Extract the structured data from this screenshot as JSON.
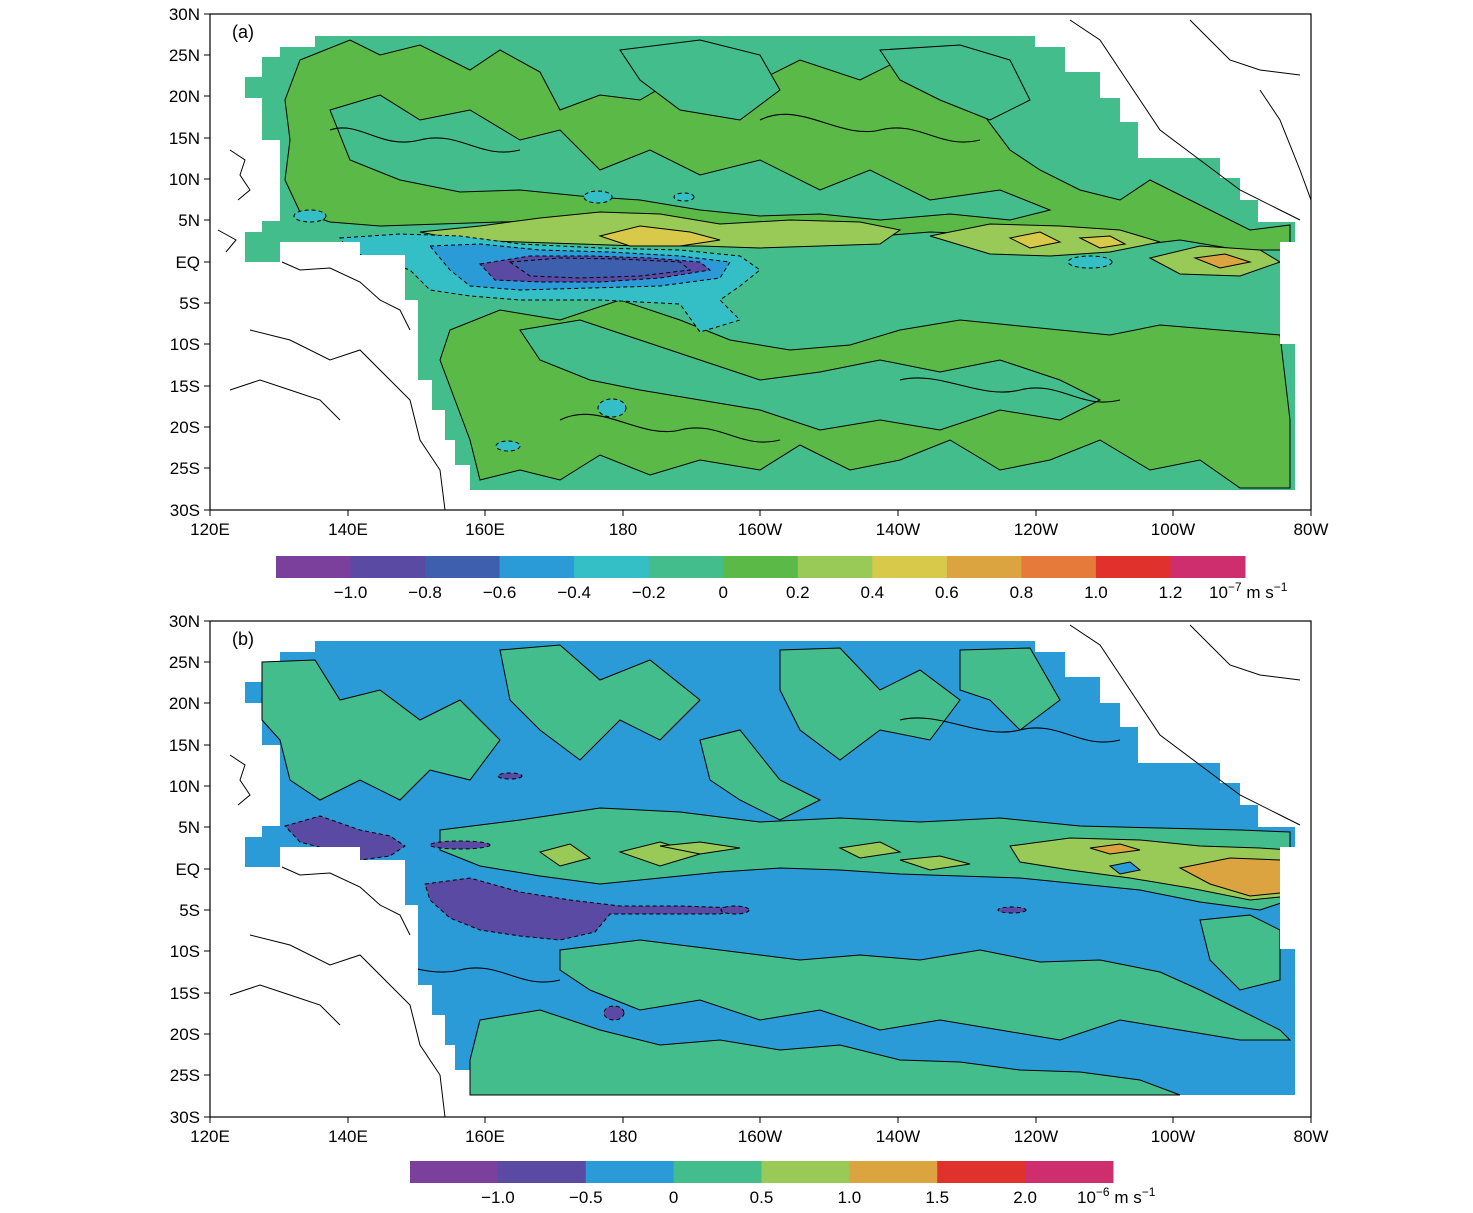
{
  "figure": {
    "panels": [
      {
        "tag": "(a)",
        "lat_ticks": [
          "30N",
          "25N",
          "20N",
          "15N",
          "10N",
          "5N",
          "EQ",
          "5S",
          "10S",
          "15S",
          "20S",
          "25S",
          "30S"
        ],
        "lon_ticks": [
          "120E",
          "140E",
          "160E",
          "180",
          "160W",
          "140W",
          "120W",
          "100W",
          "80W"
        ],
        "colorbar": {
          "colors": [
            "#7b3f9c",
            "#5a4aa3",
            "#3d5fae",
            "#2a9bd6",
            "#34bfc7",
            "#44bd8c",
            "#5bb947",
            "#99c956",
            "#d9c94a",
            "#dca441",
            "#e67a3a",
            "#e0312c",
            "#cf2e6e"
          ],
          "labels": [
            "−1.0",
            "−0.8",
            "−0.6",
            "−0.4",
            "−0.2",
            "0",
            "0.2",
            "0.4",
            "0.6",
            "0.8",
            "1.0",
            "1.2"
          ],
          "unit_base": "10",
          "unit_exp": "−7",
          "unit_rest": " m s",
          "unit_rest_exp": "−1"
        }
      },
      {
        "tag": "(b)",
        "lat_ticks": [
          "30N",
          "25N",
          "20N",
          "15N",
          "10N",
          "5N",
          "EQ",
          "5S",
          "10S",
          "15S",
          "20S",
          "25S",
          "30S"
        ],
        "lon_ticks": [
          "120E",
          "140E",
          "160E",
          "180",
          "160W",
          "140W",
          "120W",
          "100W",
          "80W"
        ],
        "colorbar": {
          "colors": [
            "#7b3f9c",
            "#5a4aa3",
            "#2a9bd6",
            "#44bd8c",
            "#99c956",
            "#dca441",
            "#e0312c",
            "#cf2e6e"
          ],
          "labels": [
            "−1.0",
            "−0.5",
            "0",
            "0.5",
            "1.0",
            "1.5",
            "2.0"
          ],
          "unit_base": "10",
          "unit_exp": "−6",
          "unit_rest": " m s",
          "unit_rest_exp": "−1"
        }
      }
    ]
  }
}
